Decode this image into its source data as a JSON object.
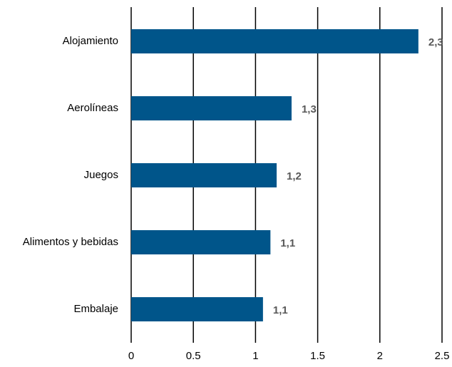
{
  "chart_data": {
    "type": "hbar",
    "categories": [
      "Alojamiento",
      "Aerolíneas",
      "Juegos",
      "Alimentos y bebidas",
      "Embalaje"
    ],
    "values": [
      2.31,
      1.29,
      1.17,
      1.12,
      1.06
    ],
    "value_labels": [
      "2,3",
      "1,3",
      "1,2",
      "1,1",
      "1,1"
    ],
    "color": "#00558a",
    "xlim": [
      0,
      2.5
    ],
    "xticks": [
      0,
      0.5,
      1,
      1.5,
      2,
      2.5
    ],
    "grid": true
  }
}
